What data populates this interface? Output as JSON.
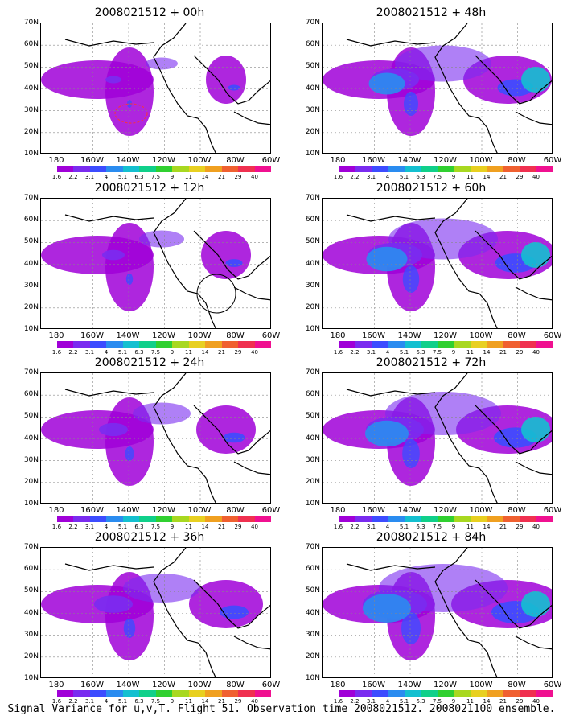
{
  "panels": [
    {
      "title": "2008021512 + 00h",
      "intensity": 0.25,
      "has_circle": false,
      "dashed": true
    },
    {
      "title": "2008021512 + 48h",
      "intensity": 0.75,
      "has_circle": false,
      "dashed": false
    },
    {
      "title": "2008021512 + 12h",
      "intensity": 0.35,
      "has_circle": true,
      "dashed": false
    },
    {
      "title": "2008021512 + 60h",
      "intensity": 0.85,
      "has_circle": false,
      "dashed": false
    },
    {
      "title": "2008021512 + 24h",
      "intensity": 0.45,
      "has_circle": false,
      "dashed": false
    },
    {
      "title": "2008021512 + 72h",
      "intensity": 0.9,
      "has_circle": false,
      "dashed": false
    },
    {
      "title": "2008021512 + 36h",
      "intensity": 0.6,
      "has_circle": false,
      "dashed": false
    },
    {
      "title": "2008021512 + 84h",
      "intensity": 1.0,
      "has_circle": false,
      "dashed": false
    }
  ],
  "y_labels": [
    "70N",
    "60N",
    "50N",
    "40N",
    "30N",
    "20N",
    "10N"
  ],
  "x_labels": [
    "180",
    "160W",
    "140W",
    "120W",
    "100W",
    "80W",
    "60W"
  ],
  "colorbar": {
    "labels": [
      "1.6",
      "2.2",
      "3.1",
      "4",
      "5.1",
      "6.3",
      "7.5",
      "9",
      "11",
      "14",
      "21",
      "29",
      "40"
    ],
    "colors": [
      "#ffffff",
      "#a000d8",
      "#7a2cf0",
      "#3c4cff",
      "#2a8cf0",
      "#14c0d0",
      "#10d08a",
      "#30d030",
      "#a8d820",
      "#e8d020",
      "#f0a020",
      "#f06030",
      "#f03050",
      "#f01090"
    ]
  },
  "caption": "Signal Variance for u,v,T. Flight 51. Observation time 2008021512. 2008021100 ensemble."
}
